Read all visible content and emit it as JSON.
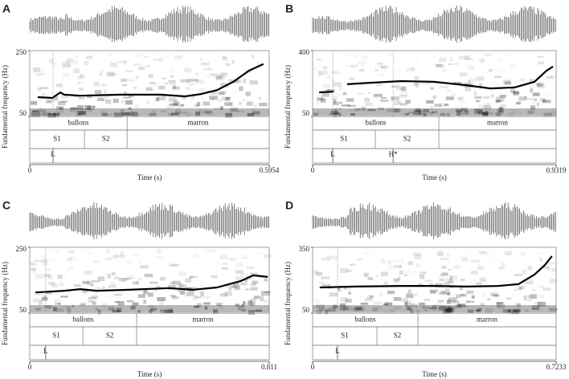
{
  "chart_data": [
    {
      "type": "line",
      "panel": "A",
      "y_label": "Fundamental frequency (Hz)",
      "x_label": "Time (s)",
      "xlim": [
        0,
        0.5954
      ],
      "xticks": [
        0,
        0.5954
      ],
      "ylim": [
        50,
        250
      ],
      "yticks": [
        50,
        250
      ],
      "color": "#000000",
      "x": [
        0.02,
        0.056,
        0.076,
        0.086,
        0.126,
        0.226,
        0.326,
        0.386,
        0.426,
        0.466,
        0.506,
        0.545,
        0.581
      ],
      "values": [
        108.5,
        106,
        123,
        116,
        113,
        116,
        116,
        111,
        118,
        130,
        155,
        189,
        209
      ],
      "tiers": [
        {
          "labels": [
            "ballons",
            "marron"
          ],
          "boundaries": [
            0.242
          ]
        },
        {
          "labels": [
            "S1",
            "S2",
            null
          ],
          "boundaries": [
            0.136,
            0.242
          ]
        }
      ],
      "points": [
        {
          "label": "L",
          "time": 0.058
        }
      ]
    },
    {
      "type": "line",
      "panel": "B",
      "y_label": "Fundamental frequency (Hz)",
      "x_label": "Time (s)",
      "xlim": [
        0,
        0.9319
      ],
      "xticks": [
        0,
        0.9319
      ],
      "ylim": [
        50,
        400
      ],
      "yticks": [
        50,
        400
      ],
      "color": "#000000",
      "x": [
        0.025,
        0.08,
        null,
        0.132,
        0.218,
        0.341,
        0.464,
        0.587,
        0.68,
        0.772,
        0.849,
        0.895,
        0.92
      ],
      "values": [
        178,
        182,
        null,
        221,
        229,
        238,
        234,
        216,
        199,
        204,
        234,
        293,
        315
      ],
      "tiers": [
        {
          "labels": [
            "ballons",
            "marron"
          ],
          "boundaries": [
            0.483
          ]
        },
        {
          "labels": [
            "S1",
            "S2",
            null
          ],
          "boundaries": [
            0.24,
            0.483
          ]
        }
      ],
      "points": [
        {
          "label": "L",
          "time": 0.077
        },
        {
          "label": "H*",
          "time": 0.308
        }
      ]
    },
    {
      "type": "line",
      "panel": "C",
      "y_label": "Fundamental frequency (Hz)",
      "x_label": "Time (s)",
      "xlim": [
        0,
        0.811
      ],
      "xticks": [
        0,
        0.811
      ],
      "ylim": [
        50,
        250
      ],
      "yticks": [
        50,
        250
      ],
      "color": "#000000",
      "x": [
        0.019,
        0.117,
        0.171,
        0.226,
        0.335,
        0.471,
        0.552,
        0.634,
        0.716,
        0.757,
        0.806
      ],
      "values": [
        113,
        118,
        123,
        118,
        121,
        126,
        121,
        128,
        148,
        165,
        160
      ],
      "tiers": [
        {
          "labels": [
            "ballons",
            "marron"
          ],
          "boundaries": [
            0.362
          ]
        },
        {
          "labels": [
            "S1",
            "S2",
            null
          ],
          "boundaries": [
            0.18,
            0.362
          ]
        }
      ],
      "points": [
        {
          "label": "L",
          "time": 0.054
        }
      ]
    },
    {
      "type": "line",
      "panel": "D",
      "y_label": "Fundamental frequency (Hz)",
      "x_label": "Time (s)",
      "xlim": [
        0,
        0.7233
      ],
      "xticks": [
        0,
        0.7233
      ],
      "ylim": [
        50,
        350
      ],
      "yticks": [
        50,
        350
      ],
      "color": "#000000",
      "x": [
        0.021,
        0.122,
        0.265,
        0.36,
        0.456,
        0.551,
        0.611,
        0.659,
        0.69,
        0.711
      ],
      "values": [
        167,
        171,
        174,
        174,
        171,
        174,
        182,
        226,
        270,
        310
      ],
      "tiers": [
        {
          "labels": [
            "ballons",
            "marron"
          ],
          "boundaries": [
            0.313
          ]
        },
        {
          "labels": [
            "S1",
            "S2",
            null
          ],
          "boundaries": [
            0.191,
            0.313
          ]
        }
      ],
      "points": [
        {
          "label": "L",
          "time": 0.074
        }
      ]
    }
  ]
}
